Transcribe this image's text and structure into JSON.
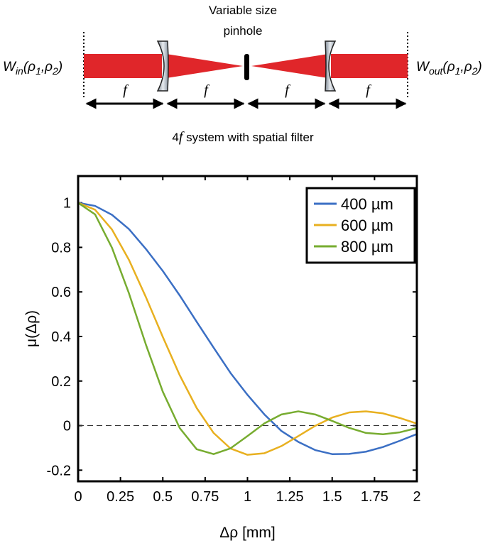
{
  "diagram": {
    "pinhole_label": [
      "Variable size",
      "pinhole"
    ],
    "input_label": [
      "W",
      "in",
      "(ρ",
      "1",
      ",ρ",
      "2",
      ")"
    ],
    "output_label": [
      "W",
      "out",
      "(ρ",
      "1",
      ",ρ",
      "2",
      ")"
    ],
    "focal_labels": [
      "f",
      "f",
      "f",
      "f"
    ],
    "caption": [
      "4",
      "f",
      " system with spatial filter"
    ]
  },
  "chart_data": {
    "type": "line",
    "xlabel": "Δρ [mm]",
    "ylabel": "μ(Δρ)",
    "x": [
      0,
      0.1,
      0.2,
      0.3,
      0.4,
      0.5,
      0.6,
      0.7,
      0.8,
      0.9,
      1.0,
      1.1,
      1.2,
      1.3,
      1.4,
      1.5,
      1.6,
      1.7,
      1.8,
      1.9,
      2.0
    ],
    "series": [
      {
        "name": "400 µm",
        "color": "#3b6fc4",
        "values": [
          1,
          0.986,
          0.946,
          0.882,
          0.793,
          0.694,
          0.584,
          0.466,
          0.35,
          0.236,
          0.138,
          0.05,
          -0.024,
          -0.073,
          -0.11,
          -0.128,
          -0.127,
          -0.117,
          -0.096,
          -0.068,
          -0.038
        ]
      },
      {
        "name": "600 µm",
        "color": "#e8b020",
        "values": [
          1,
          0.969,
          0.88,
          0.744,
          0.577,
          0.398,
          0.226,
          0.079,
          -0.033,
          -0.103,
          -0.131,
          -0.124,
          -0.092,
          -0.047,
          -0.001,
          0.036,
          0.059,
          0.064,
          0.055,
          0.034,
          0.009
        ]
      },
      {
        "name": "800 µm",
        "color": "#77ac30",
        "values": [
          1,
          0.948,
          0.798,
          0.594,
          0.364,
          0.152,
          -0.011,
          -0.106,
          -0.128,
          -0.102,
          -0.047,
          0.01,
          0.05,
          0.064,
          0.05,
          0.021,
          -0.01,
          -0.033,
          -0.039,
          -0.03,
          -0.011
        ]
      }
    ],
    "xlim": [
      0,
      2
    ],
    "xticks": [
      0,
      0.25,
      0.5,
      0.75,
      1,
      1.25,
      1.5,
      1.75,
      2
    ],
    "ylim": [
      -0.25,
      1.12
    ],
    "yticks": [
      -0.2,
      0,
      0.2,
      0.4,
      0.6,
      0.8,
      1
    ],
    "reference_line": 0,
    "legend": "upper right"
  }
}
